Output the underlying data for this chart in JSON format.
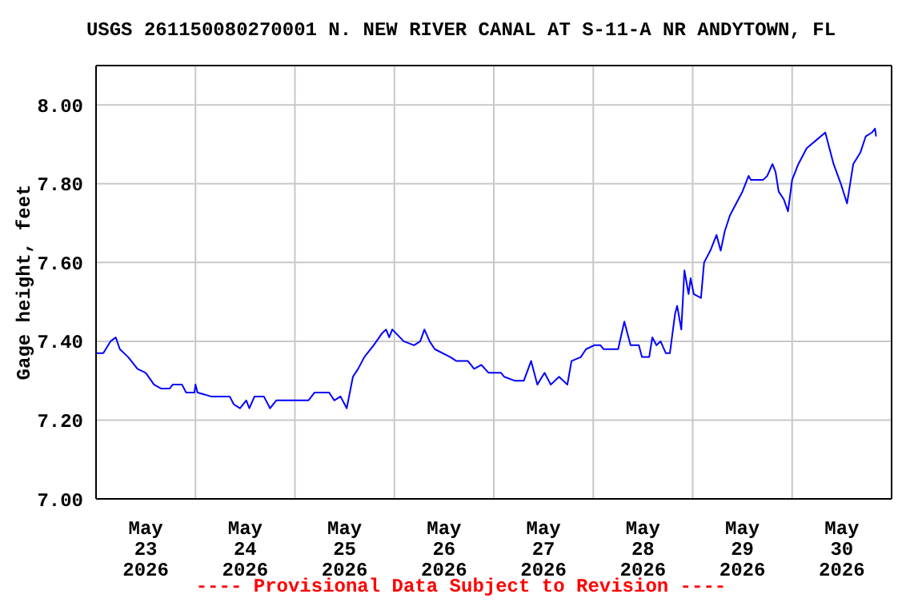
{
  "chart_data": {
    "type": "line",
    "title": "USGS 261150080270001 N. NEW RIVER CANAL AT S-11-A NR ANDYTOWN, FL",
    "ylabel": "Gage height, feet",
    "annotations": [
      "---- Provisional Data Subject to Revision ----"
    ],
    "xlim": [
      "2026-05-23T00:00",
      "2026-05-31T00:00"
    ],
    "xticks": [
      {
        "value": "2026-05-23T12:00",
        "label": "May\n23\n2026"
      },
      {
        "value": "2026-05-24T00:00",
        "label": null
      },
      {
        "value": "2026-05-24T12:00",
        "label": "May\n24\n2026"
      },
      {
        "value": "2026-05-25T00:00",
        "label": null
      },
      {
        "value": "2026-05-25T12:00",
        "label": "May\n25\n2026"
      },
      {
        "value": "2026-05-26T00:00",
        "label": null
      },
      {
        "value": "2026-05-26T12:00",
        "label": "May\n26\n2026"
      },
      {
        "value": "2026-05-27T00:00",
        "label": null
      },
      {
        "value": "2026-05-27T12:00",
        "label": "May\n27\n2026"
      },
      {
        "value": "2026-05-28T00:00",
        "label": null
      },
      {
        "value": "2026-05-28T12:00",
        "label": "May\n28\n2026"
      },
      {
        "value": "2026-05-29T00:00",
        "label": null
      },
      {
        "value": "2026-05-29T12:00",
        "label": "May\n29\n2026"
      },
      {
        "value": "2026-05-30T00:00",
        "label": null
      },
      {
        "value": "2026-05-30T12:00",
        "label": "May\n30\n2026"
      }
    ],
    "ylim": [
      7.0,
      8.1
    ],
    "yticks": [
      {
        "value": 7.0,
        "label": "7.00"
      },
      {
        "value": 7.2,
        "label": "7.20"
      },
      {
        "value": 7.4,
        "label": "7.40"
      },
      {
        "value": 7.6,
        "label": "7.60"
      },
      {
        "value": 7.8,
        "label": "7.80"
      },
      {
        "value": 8.0,
        "label": "8.00"
      }
    ],
    "grid": true,
    "marker": "none",
    "line_style": "solid",
    "series": [
      {
        "color": "#0000ff",
        "x": [
          "2026-05-23T00:00",
          "2026-05-23T01:45",
          "2026-05-23T03:30",
          "2026-05-23T04:45",
          "2026-05-23T05:45",
          "2026-05-23T07:45",
          "2026-05-23T10:00",
          "2026-05-23T12:00",
          "2026-05-23T14:00",
          "2026-05-23T15:45",
          "2026-05-23T17:45",
          "2026-05-23T18:30",
          "2026-05-23T20:45",
          "2026-05-23T21:45",
          "2026-05-23T23:45",
          "2026-05-24T00:00",
          "2026-05-24T00:30",
          "2026-05-24T03:45",
          "2026-05-24T08:15",
          "2026-05-24T09:15",
          "2026-05-24T10:45",
          "2026-05-24T12:15",
          "2026-05-24T13:00",
          "2026-05-24T14:15",
          "2026-05-24T16:30",
          "2026-05-24T18:00",
          "2026-05-24T19:30",
          "2026-05-24T21:30",
          "2026-05-25T03:15",
          "2026-05-25T04:45",
          "2026-05-25T08:15",
          "2026-05-25T09:30",
          "2026-05-25T11:00",
          "2026-05-25T12:30",
          "2026-05-25T14:00",
          "2026-05-25T15:15",
          "2026-05-25T16:45",
          "2026-05-25T19:00",
          "2026-05-25T21:00",
          "2026-05-25T22:00",
          "2026-05-25T22:45",
          "2026-05-25T23:30",
          "2026-05-26T02:15",
          "2026-05-26T04:45",
          "2026-05-26T06:15",
          "2026-05-26T07:15",
          "2026-05-26T08:30",
          "2026-05-26T09:45",
          "2026-05-26T13:30",
          "2026-05-26T15:00",
          "2026-05-26T17:45",
          "2026-05-26T19:15",
          "2026-05-26T21:00",
          "2026-05-26T22:45",
          "2026-05-27T01:45",
          "2026-05-27T02:30",
          "2026-05-27T05:00",
          "2026-05-27T07:15",
          "2026-05-27T09:00",
          "2026-05-27T10:30",
          "2026-05-27T12:15",
          "2026-05-27T13:45",
          "2026-05-27T15:45",
          "2026-05-27T17:45",
          "2026-05-27T18:45",
          "2026-05-27T21:00",
          "2026-05-27T22:15",
          "2026-05-28T00:15",
          "2026-05-28T01:45",
          "2026-05-28T02:30",
          "2026-05-28T06:00",
          "2026-05-28T07:30",
          "2026-05-28T08:15",
          "2026-05-28T09:00",
          "2026-05-28T11:00",
          "2026-05-28T11:45",
          "2026-05-28T13:30",
          "2026-05-28T14:15",
          "2026-05-28T15:15",
          "2026-05-28T16:15",
          "2026-05-28T17:30",
          "2026-05-28T18:30",
          "2026-05-28T19:45",
          "2026-05-28T20:15",
          "2026-05-28T21:15",
          "2026-05-28T22:00",
          "2026-05-28T23:00",
          "2026-05-28T23:30",
          "2026-05-29T00:15",
          "2026-05-29T02:00",
          "2026-05-29T02:45",
          "2026-05-29T04:15",
          "2026-05-29T05:45",
          "2026-05-29T06:45",
          "2026-05-29T07:45",
          "2026-05-29T09:00",
          "2026-05-29T10:30",
          "2026-05-29T12:00",
          "2026-05-29T13:30",
          "2026-05-29T14:00",
          "2026-05-29T17:00",
          "2026-05-29T18:00",
          "2026-05-29T19:15",
          "2026-05-29T20:00",
          "2026-05-29T20:45",
          "2026-05-29T22:00",
          "2026-05-29T23:00",
          "2026-05-30T00:00",
          "2026-05-30T01:30",
          "2026-05-30T03:30",
          "2026-05-30T05:45",
          "2026-05-30T08:00",
          "2026-05-30T08:45",
          "2026-05-30T10:00",
          "2026-05-30T11:45",
          "2026-05-30T13:15",
          "2026-05-30T14:45",
          "2026-05-30T16:30",
          "2026-05-30T17:45",
          "2026-05-30T19:15",
          "2026-05-30T20:00",
          "2026-05-30T20:15"
        ],
        "values": [
          7.37,
          7.37,
          7.4,
          7.41,
          7.38,
          7.36,
          7.33,
          7.32,
          7.29,
          7.28,
          7.28,
          7.29,
          7.29,
          7.27,
          7.27,
          7.29,
          7.27,
          7.26,
          7.26,
          7.24,
          7.23,
          7.25,
          7.23,
          7.26,
          7.26,
          7.23,
          7.25,
          7.25,
          7.25,
          7.27,
          7.27,
          7.25,
          7.26,
          7.23,
          7.31,
          7.33,
          7.36,
          7.39,
          7.42,
          7.43,
          7.41,
          7.43,
          7.4,
          7.39,
          7.4,
          7.43,
          7.4,
          7.38,
          7.36,
          7.35,
          7.35,
          7.33,
          7.34,
          7.32,
          7.32,
          7.31,
          7.3,
          7.3,
          7.35,
          7.29,
          7.32,
          7.29,
          7.31,
          7.29,
          7.35,
          7.36,
          7.38,
          7.39,
          7.39,
          7.38,
          7.38,
          7.45,
          7.42,
          7.39,
          7.39,
          7.36,
          7.36,
          7.41,
          7.39,
          7.4,
          7.37,
          7.37,
          7.47,
          7.49,
          7.43,
          7.58,
          7.52,
          7.56,
          7.52,
          7.51,
          7.6,
          7.63,
          7.67,
          7.63,
          7.68,
          7.72,
          7.75,
          7.78,
          7.82,
          7.81,
          7.81,
          7.82,
          7.85,
          7.83,
          7.78,
          7.76,
          7.73,
          7.81,
          7.85,
          7.89,
          7.91,
          7.93,
          7.9,
          7.85,
          7.8,
          7.75,
          7.85,
          7.88,
          7.92,
          7.93,
          7.94,
          7.92
        ]
      }
    ]
  }
}
